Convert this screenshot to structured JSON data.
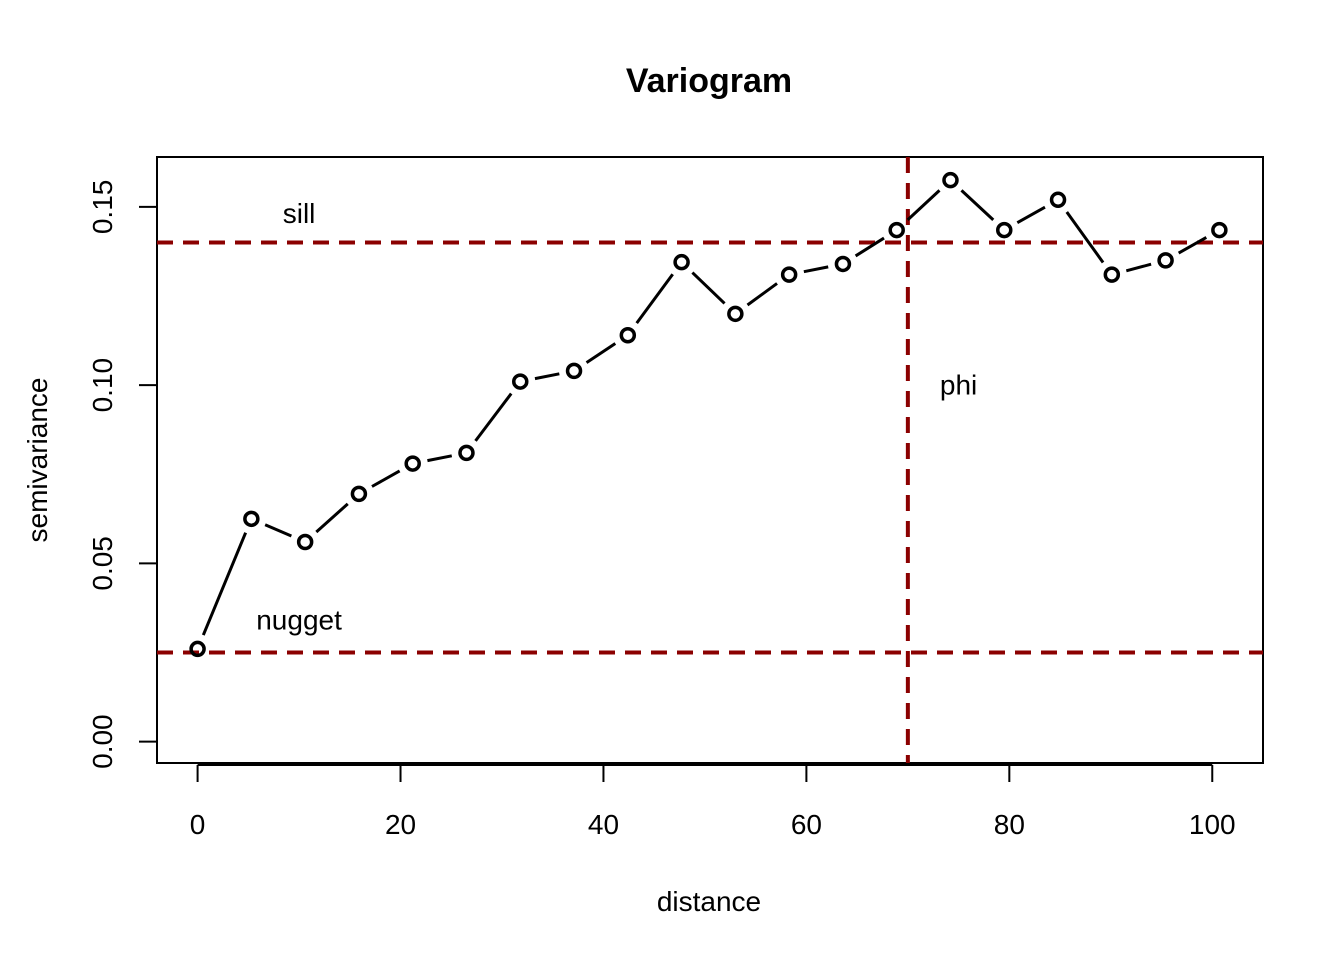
{
  "chart_data": {
    "type": "line",
    "title": "Variogram",
    "xlabel": "distance",
    "ylabel": "semivariance",
    "xlim": [
      -4,
      105
    ],
    "ylim": [
      -0.006,
      0.164
    ],
    "xticks": [
      0,
      20,
      40,
      60,
      80,
      100
    ],
    "xtick_labels": [
      "0",
      "20",
      "40",
      "60",
      "80",
      "100"
    ],
    "yticks": [
      0.0,
      0.05,
      0.1,
      0.15
    ],
    "ytick_labels": [
      "0.00",
      "0.05",
      "0.10",
      "0.15"
    ],
    "grid": false,
    "series": [
      {
        "x": [
          0,
          5.3,
          10.6,
          15.9,
          21.2,
          26.5,
          31.8,
          37.1,
          42.4,
          47.7,
          53.0,
          58.3,
          63.6,
          68.9,
          74.2,
          79.5,
          84.8,
          90.1,
          95.4,
          100.7
        ],
        "y": [
          0.026,
          0.0625,
          0.056,
          0.0695,
          0.078,
          0.081,
          0.101,
          0.104,
          0.114,
          0.1345,
          0.12,
          0.131,
          0.134,
          0.1435,
          0.1575,
          0.1435,
          0.152,
          0.131,
          0.135,
          0.1435
        ],
        "color": "#000000"
      }
    ],
    "reference_lines": [
      {
        "orientation": "horizontal",
        "value": 0.14,
        "color": "#8B0000"
      },
      {
        "orientation": "horizontal",
        "value": 0.025,
        "color": "#8B0000"
      },
      {
        "orientation": "vertical",
        "value": 70,
        "color": "#8B0000"
      }
    ],
    "annotations": [
      {
        "text": "sill",
        "x": 10,
        "y": 0.1475
      },
      {
        "text": "nugget",
        "x": 10,
        "y": 0.0335
      },
      {
        "text": "phi",
        "x": 75,
        "y": 0.0995
      }
    ]
  }
}
